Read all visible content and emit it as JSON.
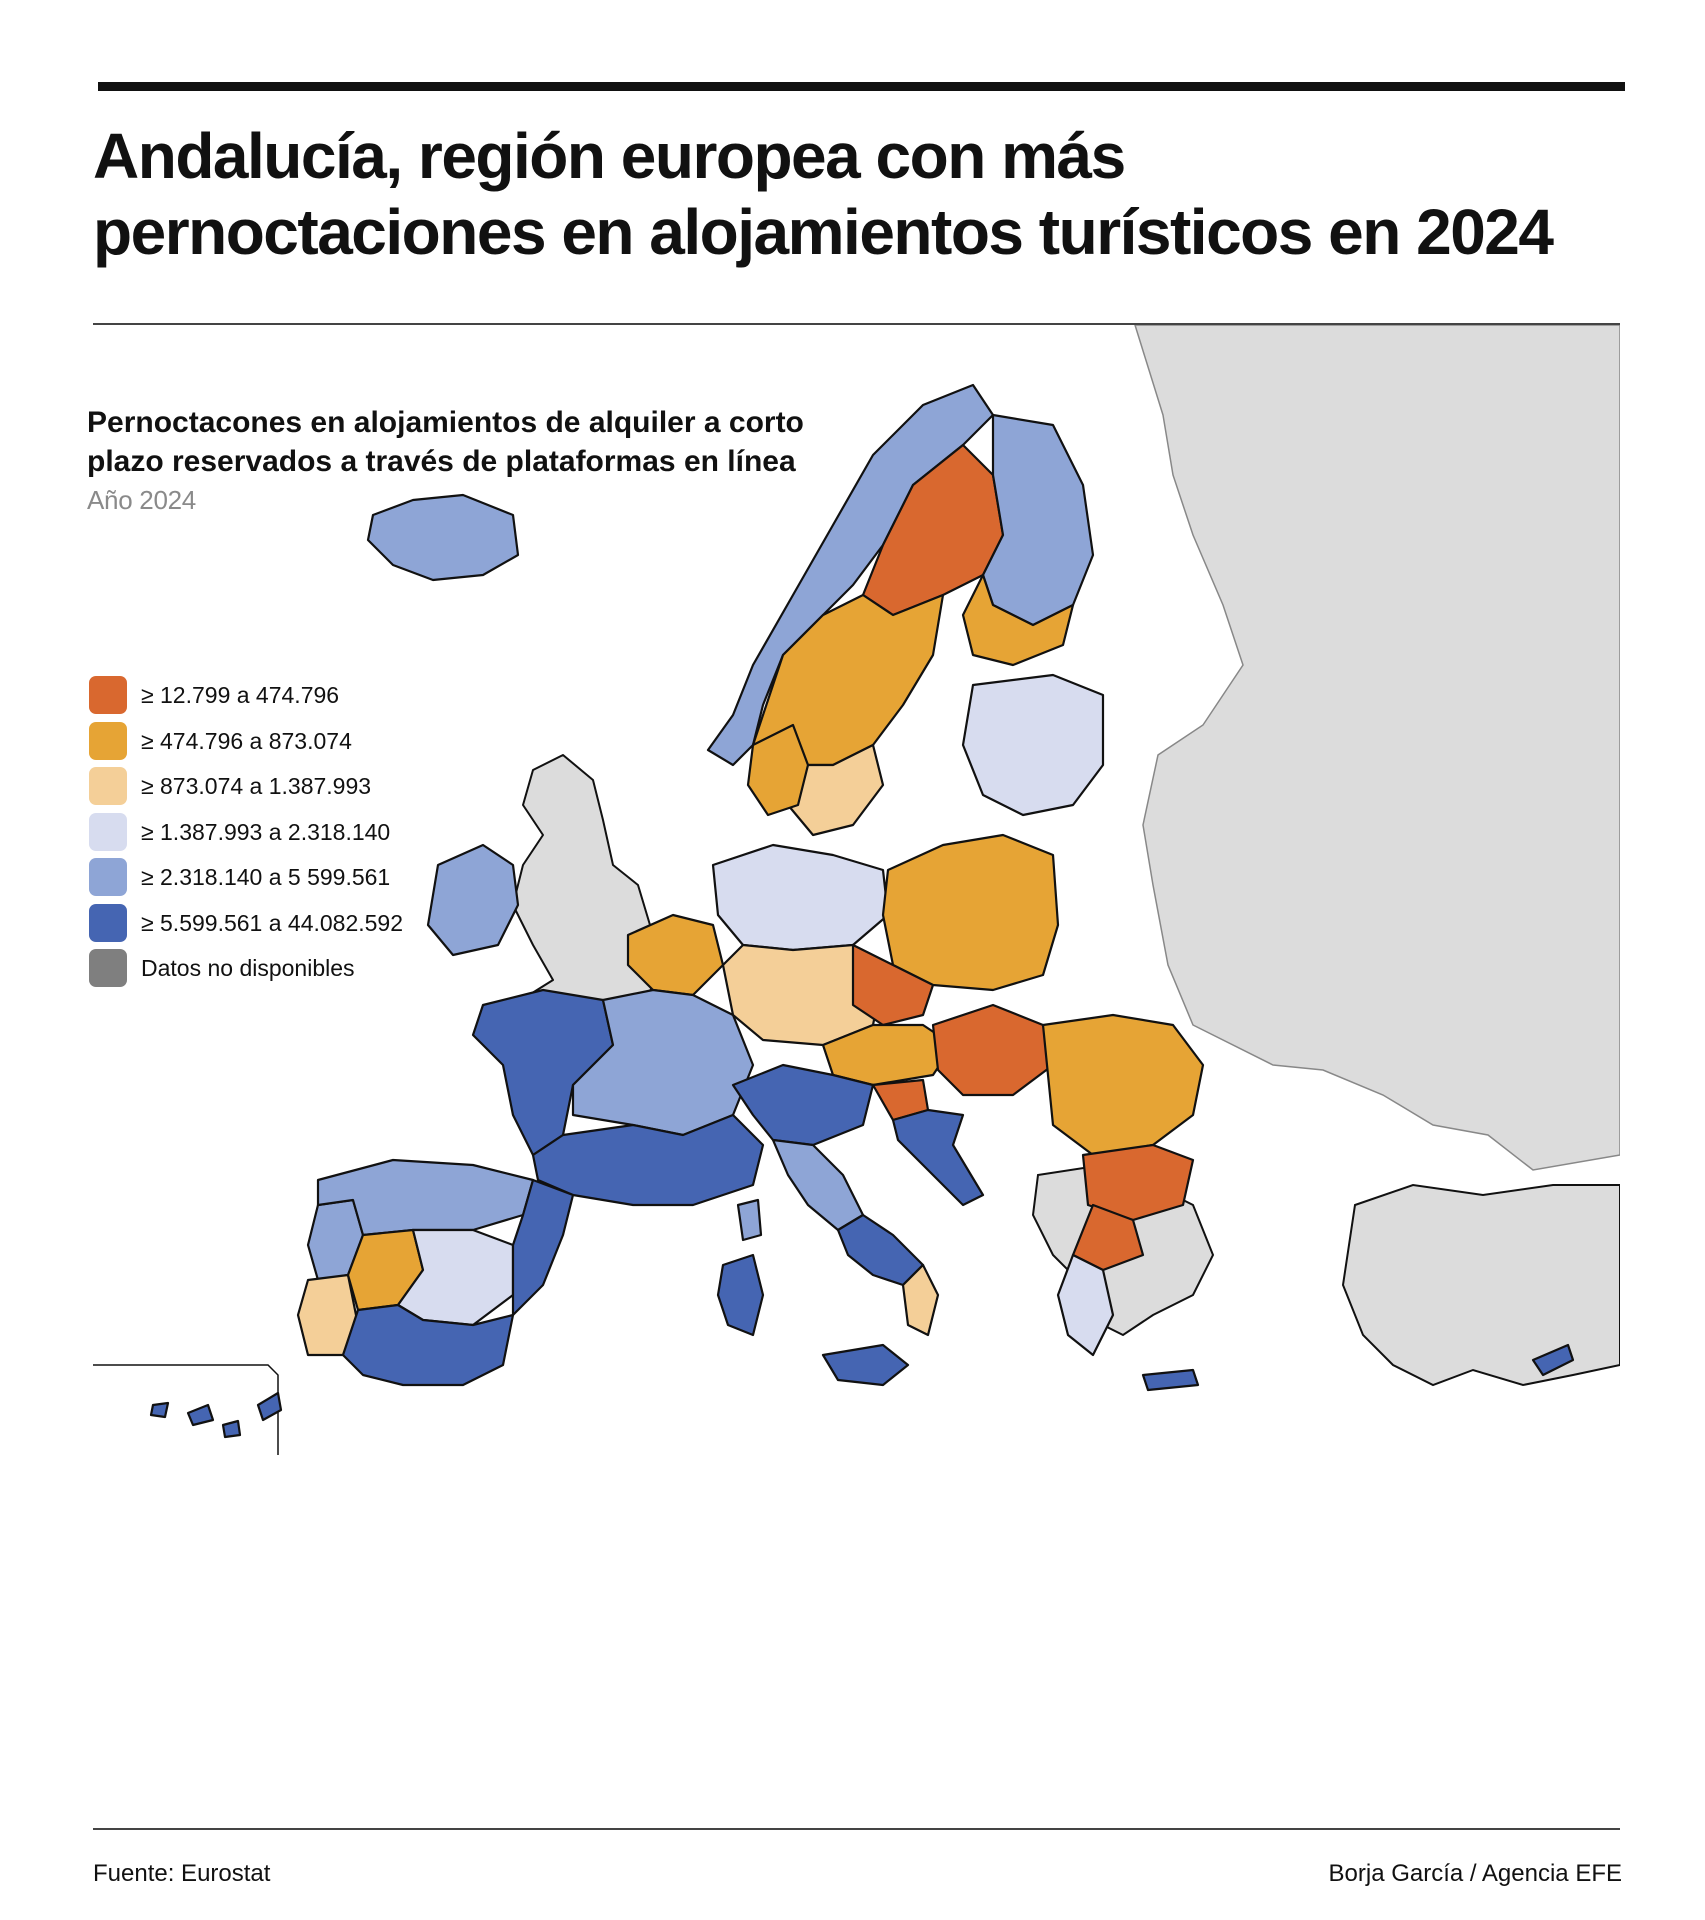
{
  "headline": {
    "line1": "Andalucía, región europea con más",
    "line2": "pernoctaciones en alojamientos turísticos en 2024"
  },
  "subtitle": {
    "line1": "Pernoctacones en alojamientos de alquiler a corto",
    "line2": "plazo reservados a través de plataformas en línea"
  },
  "year_label": "Año 2024",
  "legend": [
    {
      "label": "≥ 12.799 a 474.796",
      "color": "#d9682f"
    },
    {
      "label": "≥ 474.796 a 873.074",
      "color": "#e6a435"
    },
    {
      "label": "≥ 873.074 a 1.387.993",
      "color": "#f4cf98"
    },
    {
      "label": "≥ 1.387.993 a 2.318.140",
      "color": "#d7dcef"
    },
    {
      "label": "≥ 2.318.140 a 5 599.561",
      "color": "#8ea5d6"
    },
    {
      "label": "≥ 5.599.561 a 44.082.592",
      "color": "#4565b2"
    },
    {
      "label": "Datos no disponibles",
      "color": "#7f7f7f"
    }
  ],
  "map": {
    "nodata_fill": "#dcdcdc",
    "regions": [
      {
        "name": "Islandia",
        "class": 4
      },
      {
        "name": "Irlanda",
        "class": 4
      },
      {
        "name": "Reino Unido",
        "class": "nodata"
      },
      {
        "name": "Noruega",
        "class": 4
      },
      {
        "name": "Suecia norte",
        "class": 0
      },
      {
        "name": "Suecia centro",
        "class": 1
      },
      {
        "name": "Suecia sur",
        "class": 2
      },
      {
        "name": "Finlandia norte",
        "class": 4
      },
      {
        "name": "Finlandia sur",
        "class": 1
      },
      {
        "name": "Bálticos",
        "class": 3
      },
      {
        "name": "Dinamarca",
        "class": 1
      },
      {
        "name": "Benelux",
        "class": 1
      },
      {
        "name": "Alemania norte",
        "class": 3
      },
      {
        "name": "Alemania sur",
        "class": 2
      },
      {
        "name": "Polonia",
        "class": 1
      },
      {
        "name": "Chequia",
        "class": 0
      },
      {
        "name": "Austria",
        "class": 1
      },
      {
        "name": "Hungría",
        "class": 0
      },
      {
        "name": "Rumanía",
        "class": 1
      },
      {
        "name": "Bulgaria",
        "class": 0
      },
      {
        "name": "Francia oeste",
        "class": 5
      },
      {
        "name": "Francia centro",
        "class": 4
      },
      {
        "name": "Francia sur",
        "class": 5
      },
      {
        "name": "Portugal norte",
        "class": 4
      },
      {
        "name": "Portugal sur",
        "class": 2
      },
      {
        "name": "España norte",
        "class": 4
      },
      {
        "name": "España centro",
        "class": 3
      },
      {
        "name": "Andalucía",
        "class": 5
      },
      {
        "name": "Cataluña y Levante",
        "class": 5
      },
      {
        "name": "Extremadura",
        "class": 1
      },
      {
        "name": "Italia norte",
        "class": 5
      },
      {
        "name": "Italia centro",
        "class": 4
      },
      {
        "name": "Italia sur",
        "class": 5
      },
      {
        "name": "Calabria",
        "class": 2
      },
      {
        "name": "Sicilia",
        "class": 5
      },
      {
        "name": "Cerdeña",
        "class": 5
      },
      {
        "name": "Córcega",
        "class": 4
      },
      {
        "name": "Croacia",
        "class": 5
      },
      {
        "name": "Eslovenia",
        "class": 0
      },
      {
        "name": "Grecia norte",
        "class": 0
      },
      {
        "name": "Grecia sur",
        "class": 3
      },
      {
        "name": "Creta",
        "class": 5
      },
      {
        "name": "Chipre",
        "class": 5
      },
      {
        "name": "Canarias",
        "class": 5
      }
    ]
  },
  "footer": {
    "source": "Fuente: Eurostat",
    "credit": "Borja García / Agencia EFE"
  }
}
